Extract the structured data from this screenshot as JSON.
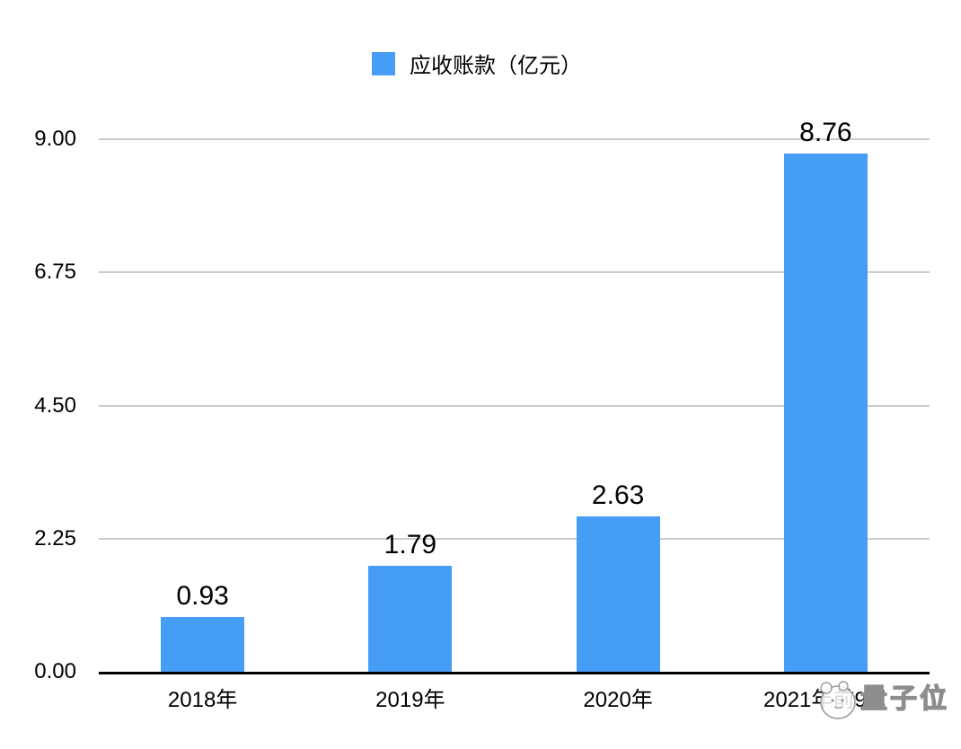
{
  "legend": {
    "label": "应收账款（亿元）"
  },
  "chart_data": {
    "type": "bar",
    "title": "",
    "categories": [
      "2018年",
      "2019年",
      "2020年",
      "2021年前9月"
    ],
    "series": [
      {
        "name": "应收账款（亿元）",
        "values": [
          0.93,
          1.79,
          2.63,
          8.76
        ]
      }
    ],
    "value_labels": [
      "0.93",
      "1.79",
      "2.63",
      "8.76"
    ],
    "xlabel": "",
    "ylabel": "",
    "ylim": [
      0,
      9
    ],
    "yticks": [
      {
        "value": 0,
        "label": "0.00"
      },
      {
        "value": 2.25,
        "label": "2.25"
      },
      {
        "value": 4.5,
        "label": "4.50"
      },
      {
        "value": 6.75,
        "label": "6.75"
      },
      {
        "value": 9,
        "label": "9.00"
      }
    ],
    "grid": true,
    "legend_position": "top-center",
    "bar_color": "#469DF5",
    "gridline_color": "#cccccc",
    "axis_color": "#000000"
  },
  "watermark": {
    "text": "量子位"
  }
}
